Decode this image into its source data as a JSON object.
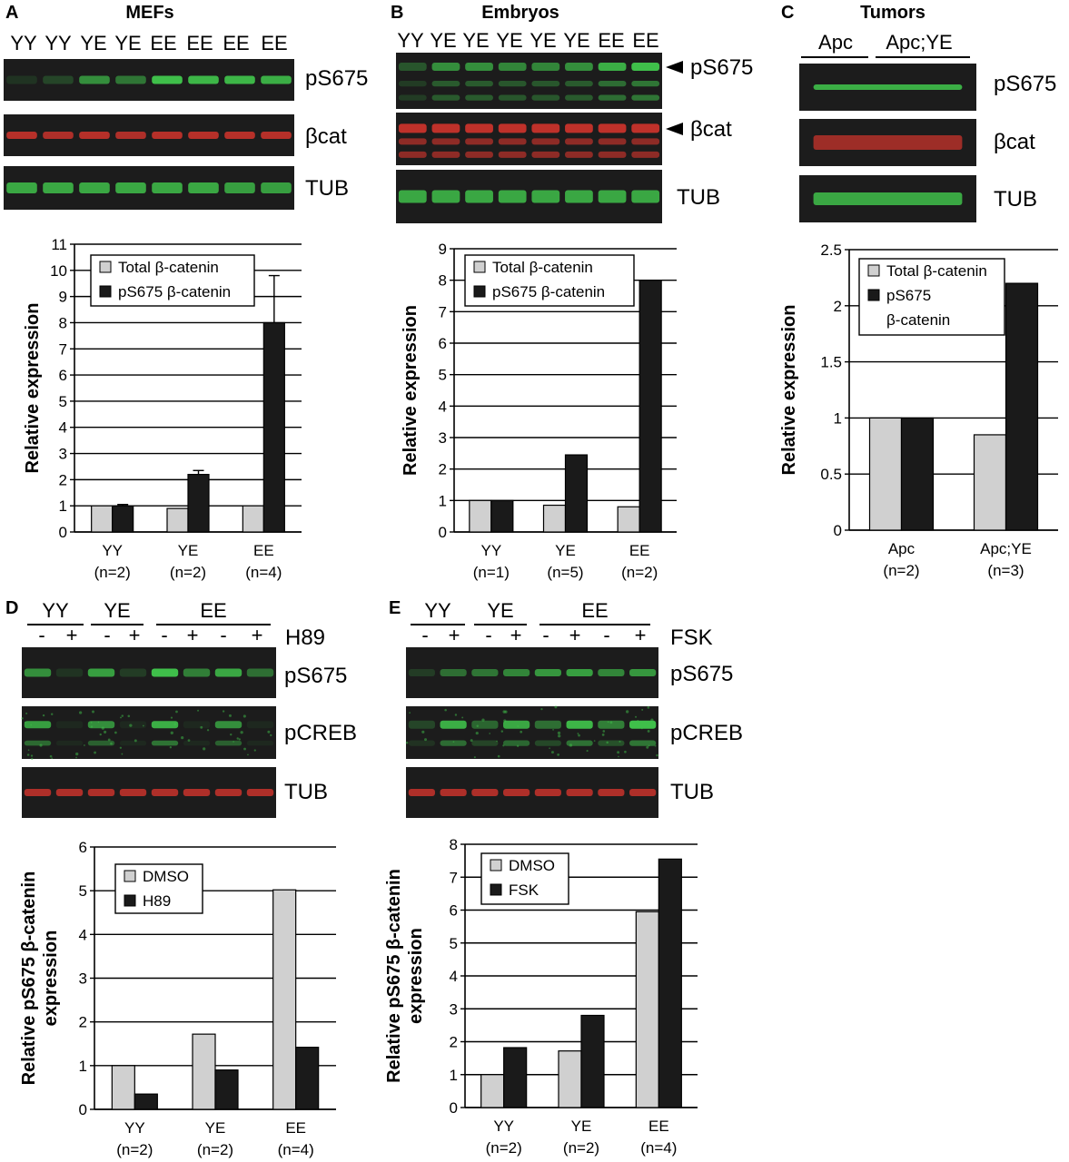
{
  "colors": {
    "total": "#d0d0d0",
    "phospho": "#1a1a1a",
    "blot_bg": "#1c1c1c",
    "green_band": "#3fbf4a",
    "red_band": "#c8332b"
  },
  "panels": {
    "A": {
      "letter": "A",
      "title": "MEFs",
      "lanes": [
        "YY",
        "YY",
        "YE",
        "YE",
        "EE",
        "EE",
        "EE",
        "EE"
      ],
      "blots": [
        "pS675",
        "βcat",
        "TUB"
      ]
    },
    "B": {
      "letter": "B",
      "title": "Embryos",
      "lanes": [
        "YY",
        "YE",
        "YE",
        "YE",
        "YE",
        "YE",
        "EE",
        "EE"
      ],
      "blots": [
        "pS675",
        "βcat",
        "TUB"
      ]
    },
    "C": {
      "letter": "C",
      "title": "Tumors",
      "groups": [
        "Apc",
        "Apc;YE"
      ],
      "blots": [
        "pS675",
        "βcat",
        "TUB"
      ]
    },
    "D": {
      "letter": "D",
      "groups": [
        "YY",
        "YE",
        "EE"
      ],
      "treatment": "H89",
      "signs": [
        "-",
        "+",
        "-",
        "+",
        "-",
        "+",
        "-",
        "+"
      ],
      "blots": [
        "pS675",
        "pCREB",
        "TUB"
      ]
    },
    "E": {
      "letter": "E",
      "groups": [
        "YY",
        "YE",
        "EE"
      ],
      "treatment": "FSK",
      "signs": [
        "-",
        "+",
        "-",
        "+",
        "-",
        "+",
        "-",
        "+"
      ],
      "blots": [
        "pS675",
        "pCREB",
        "TUB"
      ]
    }
  },
  "chart_data": [
    {
      "id": "A",
      "type": "bar",
      "ylabel": "Relative expression",
      "ylim": [
        0,
        11
      ],
      "yticks": [
        0,
        1,
        2,
        3,
        4,
        5,
        6,
        7,
        8,
        9,
        10,
        11
      ],
      "categories": [
        "YY",
        "YE",
        "EE"
      ],
      "sublabels": [
        "(n=2)",
        "(n=2)",
        "(n=4)"
      ],
      "legend": [
        "Total β-catenin",
        "pS675 β-catenin"
      ],
      "series": [
        {
          "name": "Total β-catenin",
          "values": [
            1.0,
            0.9,
            1.0
          ]
        },
        {
          "name": "pS675 β-catenin",
          "values": [
            1.0,
            2.2,
            8.0
          ],
          "errors": [
            0.05,
            0.15,
            1.8
          ]
        }
      ]
    },
    {
      "id": "B",
      "type": "bar",
      "ylabel": "Relative expression",
      "ylim": [
        0,
        9
      ],
      "yticks": [
        0,
        1,
        2,
        3,
        4,
        5,
        6,
        7,
        8,
        9
      ],
      "categories": [
        "YY",
        "YE",
        "EE"
      ],
      "sublabels": [
        "(n=1)",
        "(n=5)",
        "(n=2)"
      ],
      "legend": [
        "Total β-catenin",
        "pS675 β-catenin"
      ],
      "series": [
        {
          "name": "Total β-catenin",
          "values": [
            1.0,
            0.85,
            0.8
          ]
        },
        {
          "name": "pS675 β-catenin",
          "values": [
            1.0,
            2.45,
            8.0
          ]
        }
      ]
    },
    {
      "id": "C",
      "type": "bar",
      "ylabel": "Relative expression",
      "ylim": [
        0,
        2.5
      ],
      "yticks": [
        0,
        0.5,
        1,
        1.5,
        2,
        2.5
      ],
      "ytick_labels": [
        "0",
        "0.5",
        "1",
        "1.5",
        "2",
        "2.5"
      ],
      "categories": [
        "Apc",
        "Apc;YE"
      ],
      "sublabels": [
        "(n=2)",
        "(n=3)"
      ],
      "legend": [
        "Total β-catenin",
        "pS675",
        "β-catenin"
      ],
      "series": [
        {
          "name": "Total β-catenin",
          "values": [
            1.0,
            0.85
          ]
        },
        {
          "name": "pS675 β-catenin",
          "values": [
            1.0,
            2.2
          ]
        }
      ]
    },
    {
      "id": "D",
      "type": "bar",
      "ylabel": [
        "Relative pS675 β-catenin",
        "expression"
      ],
      "ylim": [
        0,
        6
      ],
      "yticks": [
        0,
        1,
        2,
        3,
        4,
        5,
        6
      ],
      "categories": [
        "YY",
        "YE",
        "EE"
      ],
      "sublabels": [
        "(n=2)",
        "(n=2)",
        "(n=4)"
      ],
      "legend": [
        "DMSO",
        "H89"
      ],
      "series": [
        {
          "name": "DMSO",
          "values": [
            1.0,
            1.72,
            5.02
          ]
        },
        {
          "name": "H89",
          "values": [
            0.35,
            0.9,
            1.42
          ]
        }
      ]
    },
    {
      "id": "E",
      "type": "bar",
      "ylabel": [
        "Relative pS675 β-catenin",
        "expression"
      ],
      "ylim": [
        0,
        8
      ],
      "yticks": [
        0,
        1,
        2,
        3,
        4,
        5,
        6,
        7,
        8
      ],
      "categories": [
        "YY",
        "YE",
        "EE"
      ],
      "sublabels": [
        "(n=2)",
        "(n=2)",
        "(n=4)"
      ],
      "legend": [
        "DMSO",
        "FSK"
      ],
      "series": [
        {
          "name": "DMSO",
          "values": [
            1.0,
            1.72,
            5.95
          ]
        },
        {
          "name": "FSK",
          "values": [
            1.82,
            2.8,
            7.55
          ]
        }
      ]
    }
  ]
}
